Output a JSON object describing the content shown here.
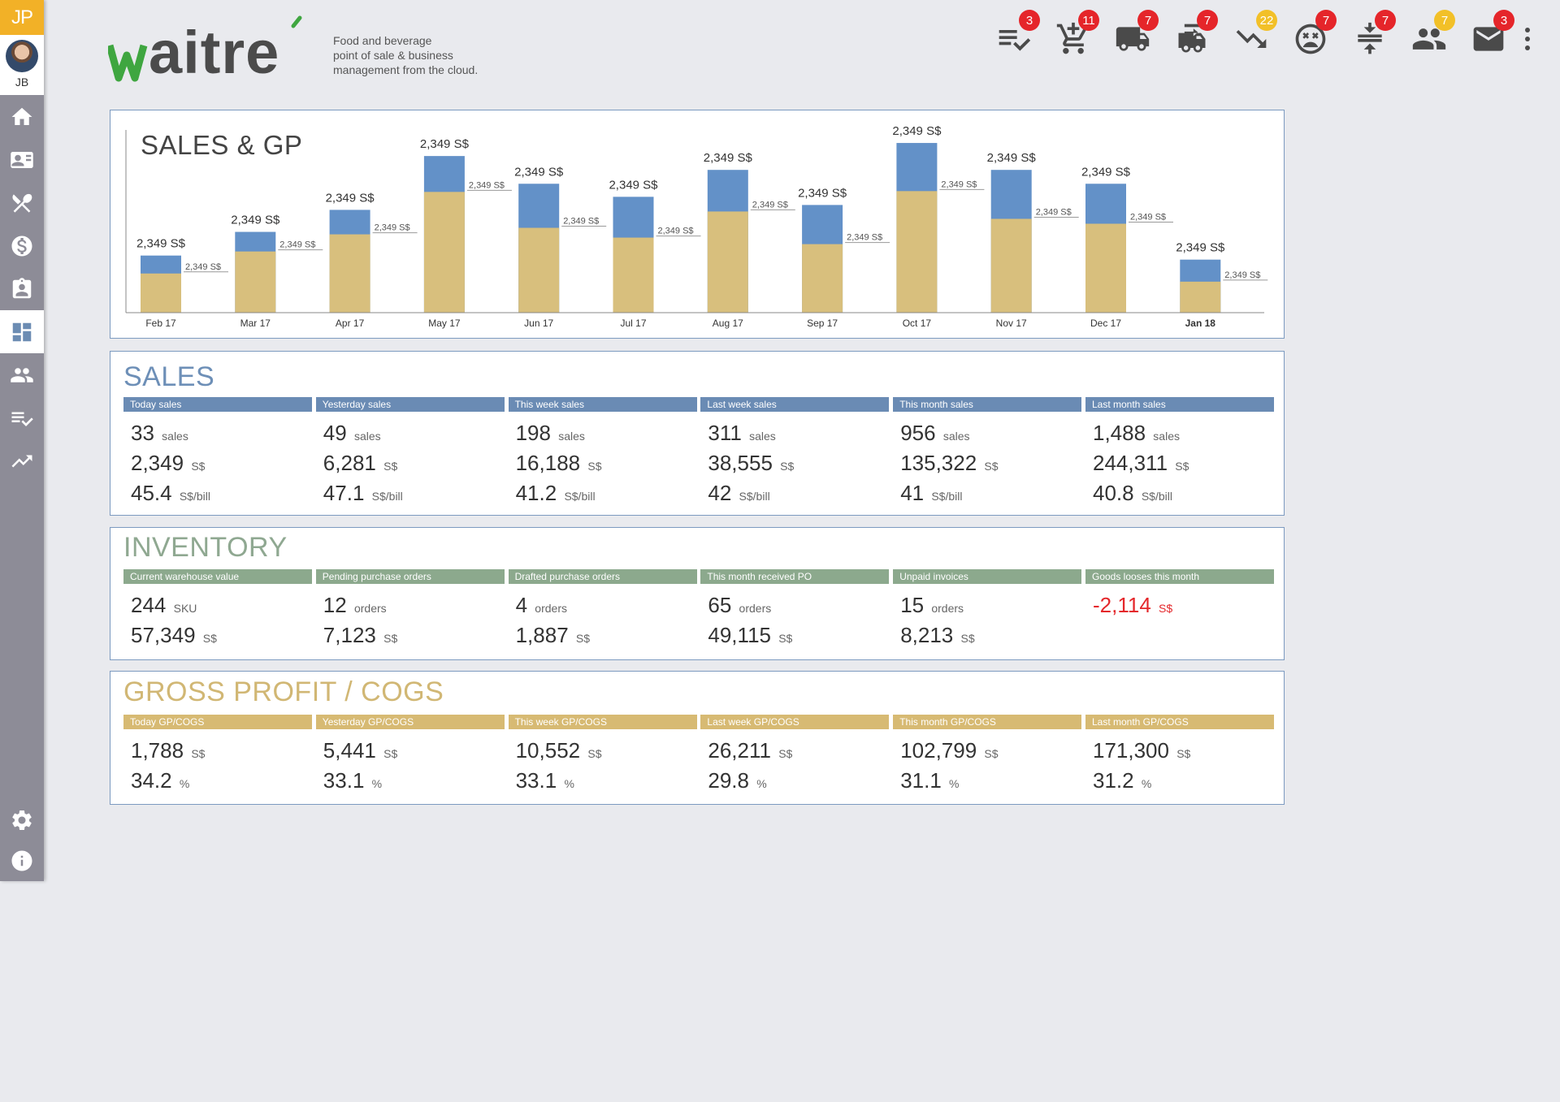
{
  "app": {
    "brand_initials": "JP",
    "user_initials": "JB",
    "logo_text": "waitré",
    "tagline": [
      "Food and beverage",
      "point of sale & business",
      "management from the cloud."
    ]
  },
  "colors": {
    "sales_blue": "#6a8bb4",
    "inventory_green": "#8ca98d",
    "gp_gold": "#d7ba73",
    "bar_blue": "#6391c8",
    "bar_gold": "#d8bf7d",
    "badge_red": "#e5252a",
    "badge_amber": "#f2c028",
    "logo_green": "#3fa640"
  },
  "sidebar": {
    "items": [
      {
        "icon": "home-icon",
        "active": false
      },
      {
        "icon": "contact-card-icon",
        "active": false
      },
      {
        "icon": "utensils-icon",
        "active": false
      },
      {
        "icon": "dollar-icon",
        "active": false
      },
      {
        "icon": "clipboard-icon",
        "active": false
      },
      {
        "icon": "dashboard-icon",
        "active": true
      },
      {
        "icon": "people-icon",
        "active": false
      },
      {
        "icon": "checklist-icon",
        "active": false
      },
      {
        "icon": "trending-up-icon",
        "active": false
      }
    ],
    "bottom": [
      {
        "icon": "gear-icon"
      },
      {
        "icon": "info-icon"
      }
    ]
  },
  "toolbar": {
    "icons": [
      {
        "icon": "checklist-icon",
        "badge": "3",
        "badge_color": "red"
      },
      {
        "icon": "add-to-cart-icon",
        "badge": "11",
        "badge_color": "red"
      },
      {
        "icon": "truck-icon",
        "badge": "7",
        "badge_color": "red"
      },
      {
        "icon": "delivery-van-icon",
        "badge": "7",
        "badge_color": "red"
      },
      {
        "icon": "trending-down-icon",
        "badge": "22",
        "badge_color": "amber"
      },
      {
        "icon": "sad-face-icon",
        "badge": "7",
        "badge_color": "red"
      },
      {
        "icon": "compress-icon",
        "badge": "7",
        "badge_color": "red"
      },
      {
        "icon": "people-icon",
        "badge": "7",
        "badge_color": "amber"
      },
      {
        "icon": "mail-icon",
        "badge": "3",
        "badge_color": "red"
      }
    ]
  },
  "chart_data": {
    "type": "bar",
    "title": "SALES & GP",
    "categories": [
      "Feb 17",
      "Mar 17",
      "Apr 17",
      "May 17",
      "Jun 17",
      "Jul 17",
      "Aug 17",
      "Sep 17",
      "Oct 17",
      "Nov 17",
      "Dec 17",
      "Jan 18"
    ],
    "highlight_category": "Jan 18",
    "series": [
      {
        "name": "GP",
        "values": [
          48,
          75,
          96,
          148,
          104,
          92,
          124,
          84,
          149,
          115,
          109,
          38
        ]
      },
      {
        "name": "Sales",
        "values": [
          70,
          99,
          126,
          192,
          158,
          142,
          175,
          132,
          208,
          175,
          158,
          65
        ]
      }
    ],
    "total_labels": [
      "2,349 S$",
      "2,349 S$",
      "2,349 S$",
      "2,349 S$",
      "2,349 S$",
      "2,349 S$",
      "2,349 S$",
      "2,349 S$",
      "2,349 S$",
      "2,349 S$",
      "2,349 S$",
      "2,349 S$"
    ],
    "gp_labels": [
      "2,349 S$",
      "2,349 S$",
      "2,349 S$",
      "2,349 S$",
      "2,349 S$",
      "2,349 S$",
      "2,349 S$",
      "2,349 S$",
      "2,349 S$",
      "2,349 S$",
      "2,349 S$",
      "2,349 S$"
    ],
    "ylim": [
      0,
      220
    ]
  },
  "sales": {
    "title": "SALES",
    "stats": [
      {
        "label": "Today sales",
        "lines": [
          {
            "v": "33",
            "u": "sales"
          },
          {
            "v": "2,349",
            "u": "S$"
          },
          {
            "v": "45.4",
            "u": "S$/bill"
          }
        ]
      },
      {
        "label": "Yesterday sales",
        "lines": [
          {
            "v": "49",
            "u": "sales"
          },
          {
            "v": "6,281",
            "u": "S$"
          },
          {
            "v": "47.1",
            "u": "S$/bill"
          }
        ]
      },
      {
        "label": "This week sales",
        "lines": [
          {
            "v": "198",
            "u": "sales"
          },
          {
            "v": "16,188",
            "u": "S$"
          },
          {
            "v": "41.2",
            "u": "S$/bill"
          }
        ]
      },
      {
        "label": "Last week sales",
        "lines": [
          {
            "v": "311",
            "u": "sales"
          },
          {
            "v": "38,555",
            "u": "S$"
          },
          {
            "v": "42",
            "u": "S$/bill"
          }
        ]
      },
      {
        "label": "This month sales",
        "lines": [
          {
            "v": "956",
            "u": "sales"
          },
          {
            "v": "135,322",
            "u": "S$"
          },
          {
            "v": "41",
            "u": "S$/bill"
          }
        ]
      },
      {
        "label": "Last month sales",
        "lines": [
          {
            "v": "1,488",
            "u": "sales"
          },
          {
            "v": "244,311",
            "u": "S$"
          },
          {
            "v": "40.8",
            "u": "S$/bill"
          }
        ]
      }
    ]
  },
  "inventory": {
    "title": "INVENTORY",
    "stats": [
      {
        "label": "Current warehouse value",
        "lines": [
          {
            "v": "244",
            "u": "SKU"
          },
          {
            "v": "57,349",
            "u": "S$"
          }
        ]
      },
      {
        "label": "Pending purchase orders",
        "lines": [
          {
            "v": "12",
            "u": "orders"
          },
          {
            "v": "7,123",
            "u": "S$"
          }
        ]
      },
      {
        "label": "Drafted purchase orders",
        "lines": [
          {
            "v": "4",
            "u": "orders"
          },
          {
            "v": "1,887",
            "u": "S$"
          }
        ]
      },
      {
        "label": "This month received PO",
        "lines": [
          {
            "v": "65",
            "u": "orders"
          },
          {
            "v": "49,115",
            "u": "S$"
          }
        ]
      },
      {
        "label": "Unpaid invoices",
        "lines": [
          {
            "v": "15",
            "u": "orders"
          },
          {
            "v": "8,213",
            "u": "S$"
          }
        ]
      },
      {
        "label": "Goods looses this month",
        "lines": [
          {
            "v": "-2,114",
            "u": "S$",
            "negative": true
          }
        ]
      }
    ]
  },
  "gross_profit": {
    "title": "GROSS PROFIT / COGS",
    "stats": [
      {
        "label": "Today GP/COGS",
        "lines": [
          {
            "v": "1,788",
            "u": "S$"
          },
          {
            "v": "34.2",
            "u": "%"
          }
        ]
      },
      {
        "label": "Yesterday GP/COGS",
        "lines": [
          {
            "v": "5,441",
            "u": "S$"
          },
          {
            "v": "33.1",
            "u": "%"
          }
        ]
      },
      {
        "label": "This week GP/COGS",
        "lines": [
          {
            "v": "10,552",
            "u": "S$"
          },
          {
            "v": "33.1",
            "u": "%"
          }
        ]
      },
      {
        "label": "Last week GP/COGS",
        "lines": [
          {
            "v": "26,211",
            "u": "S$"
          },
          {
            "v": "29.8",
            "u": "%"
          }
        ]
      },
      {
        "label": "This month GP/COGS",
        "lines": [
          {
            "v": "102,799",
            "u": "S$"
          },
          {
            "v": "31.1",
            "u": "%"
          }
        ]
      },
      {
        "label": "Last month GP/COGS",
        "lines": [
          {
            "v": "171,300",
            "u": "S$"
          },
          {
            "v": "31.2",
            "u": "%"
          }
        ]
      }
    ]
  }
}
